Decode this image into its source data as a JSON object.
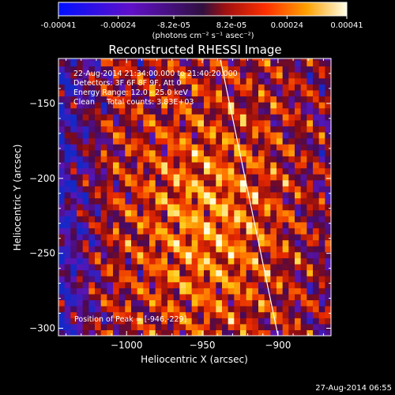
{
  "colorbar": {
    "tick_labels": [
      "-0.00041",
      "-0.00024",
      "-8.2e-05",
      "8.2e-05",
      "0.00024",
      "0.00041"
    ],
    "tick_values": [
      -0.00041,
      -0.00024,
      -8.2e-05,
      8.2e-05,
      0.00024,
      0.00041
    ],
    "range": [
      -0.00041,
      0.00041
    ],
    "units": "(photons cm⁻² s⁻¹ asec⁻²)"
  },
  "chart_data": {
    "type": "heatmap",
    "title": "Reconstructed RHESSI Image",
    "xlabel": "Heliocentric X (arcsec)",
    "ylabel": "Heliocentric Y (arcsec)",
    "xlim": [
      -1045,
      -865
    ],
    "ylim": [
      -305,
      -120
    ],
    "x_ticks": [
      -1000,
      -950,
      -900
    ],
    "y_ticks": [
      -150,
      -200,
      -250,
      -300
    ],
    "x_tick_labels": [
      "−1000",
      "−950",
      "−900"
    ],
    "y_tick_labels": [
      "−150",
      "−200",
      "−250",
      "−300"
    ],
    "limb_line": {
      "x": [
        -938,
        -900
      ],
      "y": [
        -121,
        -305
      ]
    },
    "peak": {
      "x": -946,
      "y": -229
    },
    "annotations": [
      "22-Aug-2014 21:34:00.000 to 21:40:20.000",
      "Detectors: 3F 6F 8F 9F, Att 0",
      "Energy Range: 12.0 - 25.0 keV",
      "Clean     Total counts: 3.83E+03"
    ],
    "peak_label": "Position of Peak = [-946,-229]"
  },
  "footer": {
    "timestamp": "27-Aug-2014 06:55"
  },
  "colors": {
    "background": "#000000",
    "axes": "#ffffff",
    "limb": "#ffffff"
  }
}
